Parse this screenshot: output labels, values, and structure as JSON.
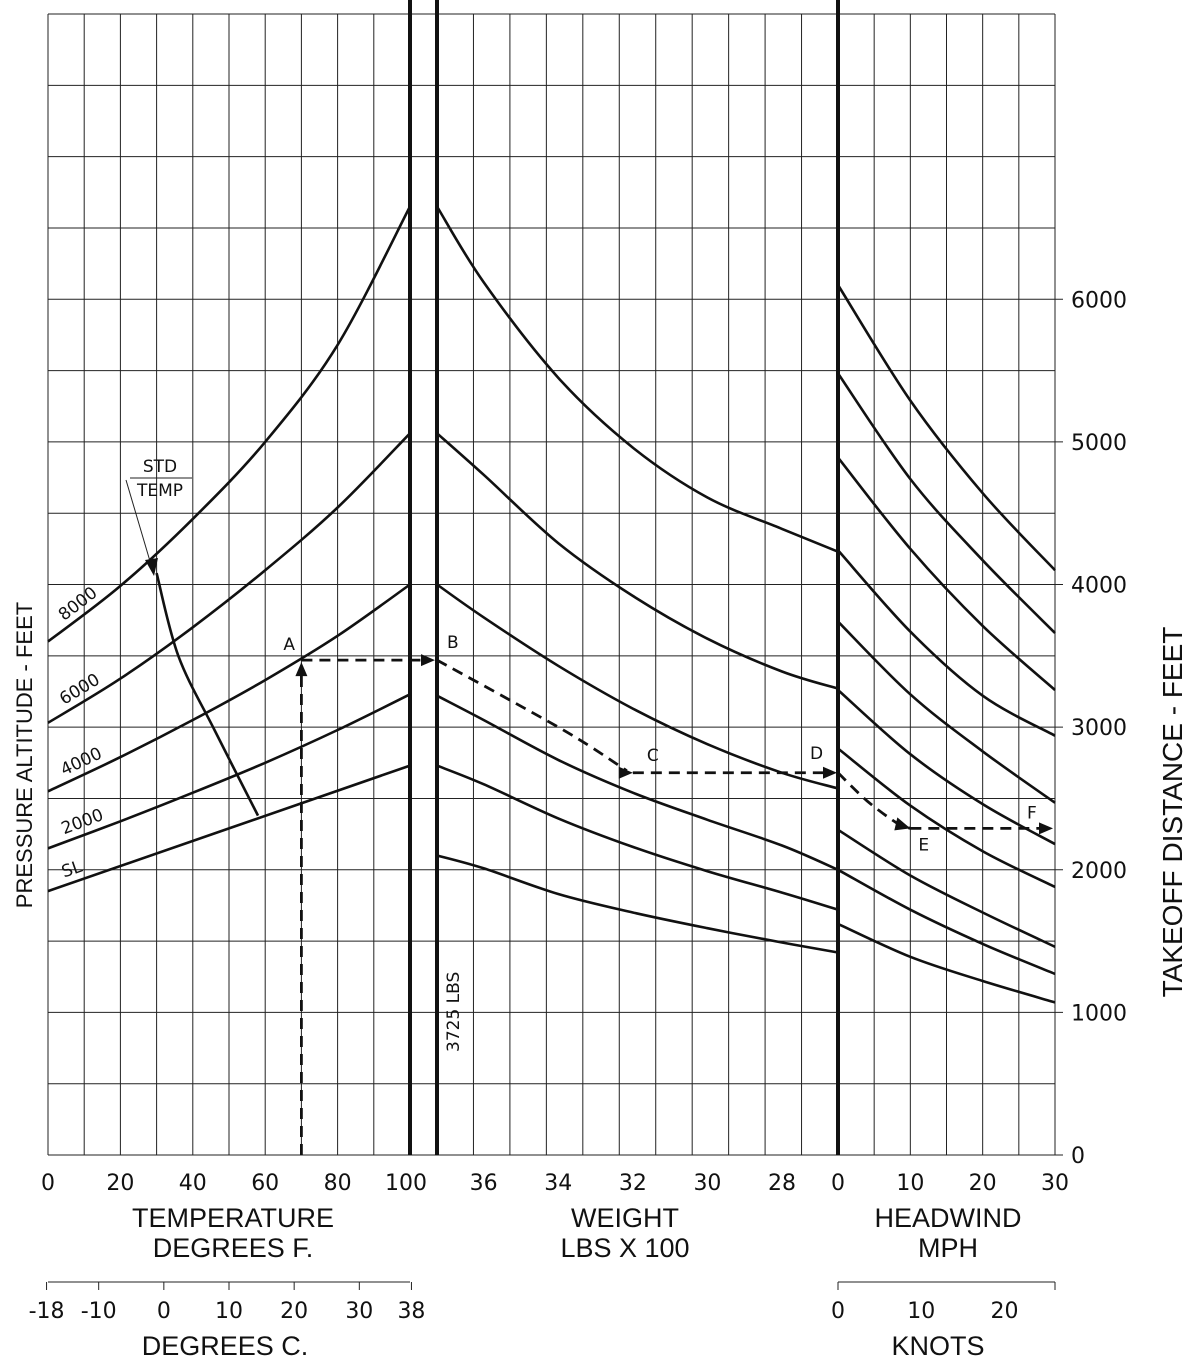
{
  "chart_data": {
    "type": "line",
    "panels": {
      "temperature": {
        "xlabel": "TEMPERATURE",
        "xlabel2": "DEGREES F.",
        "x_ticks": [
          "0",
          "20",
          "40",
          "60",
          "80",
          "100"
        ],
        "xlim": [
          0,
          100
        ],
        "secondary_xlabel": "DEGREES C.",
        "secondary_ticks": [
          "-18",
          "-10",
          "0",
          "10",
          "20",
          "30",
          "38"
        ],
        "ylabel": "PRESSURE ALTITUDE - FEET",
        "series": [
          {
            "name": "SL",
            "x": [
              0,
              100
            ],
            "y": [
              1850,
              2730
            ]
          },
          {
            "name": "2000",
            "x": [
              0,
              20,
              40,
              60,
              80,
              100
            ],
            "y": [
              2150,
              2340,
              2540,
              2750,
              2980,
              3230
            ]
          },
          {
            "name": "4000",
            "x": [
              0,
              20,
              40,
              60,
              80,
              100
            ],
            "y": [
              2550,
              2790,
              3050,
              3330,
              3640,
              4000
            ]
          },
          {
            "name": "6000",
            "x": [
              0,
              20,
              40,
              60,
              80,
              100
            ],
            "y": [
              3030,
              3340,
              3700,
              4100,
              4540,
              5060
            ]
          },
          {
            "name": "8000",
            "x": [
              0,
              20,
              40,
              60,
              80,
              100
            ],
            "y": [
              3600,
              3990,
              4460,
              5000,
              5680,
              6650
            ]
          }
        ],
        "std_temp_line": {
          "label_top": "STD",
          "label_bottom": "TEMP",
          "x": [
            30,
            36,
            46,
            58
          ],
          "y": [
            4080,
            3500,
            2980,
            2380
          ]
        }
      },
      "weight": {
        "xlabel": "WEIGHT",
        "xlabel2": "LBS X 100",
        "x_ticks": [
          "36",
          "34",
          "32",
          "30",
          "28"
        ],
        "xlim": [
          37.25,
          26.5
        ],
        "reference_label": "3725 LBS",
        "series": [
          {
            "x": [
              37.25,
              36,
              34,
              32,
              30,
              28,
              26.5
            ],
            "y": [
              2100,
              2010,
              1830,
              1700,
              1590,
              1490,
              1420
            ]
          },
          {
            "x": [
              37.25,
              36,
              34,
              32,
              30,
              28,
              26.5
            ],
            "y": [
              2730,
              2600,
              2360,
              2160,
              1990,
              1840,
              1720
            ]
          },
          {
            "x": [
              37.25,
              36,
              34,
              32,
              30,
              28,
              26.5
            ],
            "y": [
              3220,
              3050,
              2770,
              2540,
              2350,
              2170,
              2000
            ]
          },
          {
            "x": [
              37.25,
              36,
              34,
              32,
              30,
              28,
              26.5
            ],
            "y": [
              4000,
              3770,
              3430,
              3130,
              2880,
              2680,
              2570
            ]
          },
          {
            "x": [
              37.25,
              36,
              34,
              32,
              30,
              28,
              26.5
            ],
            "y": [
              5060,
              4770,
              4290,
              3920,
              3620,
              3390,
              3270
            ]
          },
          {
            "x": [
              37.25,
              36,
              34,
              32,
              30,
              28,
              26.5
            ],
            "y": [
              6650,
              6120,
              5450,
              4960,
              4610,
              4390,
              4230
            ]
          }
        ]
      },
      "headwind": {
        "xlabel": "HEADWIND",
        "xlabel2": "MPH",
        "x_ticks": [
          "0",
          "10",
          "20",
          "30"
        ],
        "xlim": [
          0,
          30
        ],
        "secondary_xlabel": "KNOTS",
        "secondary_ticks": [
          "0",
          "10",
          "20"
        ],
        "ylabel": "TAKEOFF DISTANCE - FEET",
        "y_ticks": [
          "0",
          "1000",
          "2000",
          "3000",
          "4000",
          "5000",
          "6000"
        ],
        "ylim": [
          0,
          8000
        ],
        "series": [
          {
            "x": [
              0,
              10,
              20,
              30
            ],
            "y": [
              1620,
              1390,
              1220,
              1070
            ]
          },
          {
            "x": [
              0,
              10,
              20,
              30
            ],
            "y": [
              2000,
              1720,
              1480,
              1270
            ]
          },
          {
            "x": [
              0,
              10,
              20,
              30
            ],
            "y": [
              2280,
              1960,
              1700,
              1460
            ]
          },
          {
            "x": [
              0,
              10,
              20,
              30
            ],
            "y": [
              2850,
              2450,
              2130,
              1880
            ]
          },
          {
            "x": [
              0,
              10,
              20,
              30
            ],
            "y": [
              3260,
              2810,
              2460,
              2180
            ]
          },
          {
            "x": [
              0,
              10,
              20,
              30
            ],
            "y": [
              3740,
              3230,
              2830,
              2470
            ]
          },
          {
            "x": [
              0,
              10,
              20,
              30
            ],
            "y": [
              4240,
              3670,
              3220,
              2940
            ]
          },
          {
            "x": [
              0,
              10,
              20,
              30
            ],
            "y": [
              4890,
              4250,
              3710,
              3260
            ]
          },
          {
            "x": [
              0,
              10,
              20,
              30
            ],
            "y": [
              5480,
              4740,
              4170,
              3660
            ]
          },
          {
            "x": [
              0,
              10,
              20,
              30
            ],
            "y": [
              6100,
              5290,
              4640,
              4100
            ]
          }
        ]
      }
    },
    "example_path": {
      "labels": [
        "A",
        "B",
        "C",
        "D",
        "E",
        "F"
      ],
      "start_temp_f": 70,
      "altitude_value": 3470,
      "weight_value": 32,
      "distance_after_weight": 2680,
      "headwind_value": 10,
      "result": 2290
    }
  }
}
